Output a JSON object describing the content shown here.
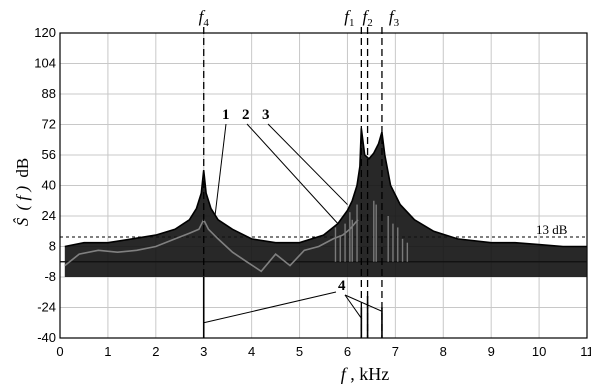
{
  "chart_data": {
    "type": "line",
    "xlabel": "f",
    "xlabel_unit": ", kHz",
    "ylabel_symbol": "Ŝ",
    "ylabel_arg": "( f )",
    "ylabel_unit": "dB",
    "xlim": [
      0,
      11
    ],
    "ylim": [
      -40,
      120
    ],
    "xticks": [
      0,
      1,
      2,
      3,
      4,
      5,
      6,
      7,
      8,
      9,
      10,
      11
    ],
    "yticks": [
      -40,
      -24,
      -8,
      8,
      24,
      40,
      56,
      72,
      88,
      104,
      120
    ],
    "grid": true,
    "threshold": {
      "value": 13,
      "label": "13 dB"
    },
    "zero_line": 0,
    "frequency_markers": [
      {
        "name": "f",
        "sub": "4",
        "x": 3.0
      },
      {
        "name": "f",
        "sub": "1",
        "x": 6.29
      },
      {
        "name": "f",
        "sub": "2",
        "x": 6.42
      },
      {
        "name": "f",
        "sub": "3",
        "x": 6.72
      }
    ],
    "series": [
      {
        "label_number": "1",
        "style": "gray-thin",
        "x": [
          0.1,
          0.4,
          0.8,
          1.2,
          1.6,
          2.0,
          2.4,
          2.7,
          2.9,
          3.0,
          3.1,
          3.3,
          3.6,
          3.9,
          4.2,
          4.5,
          4.8,
          5.1,
          5.4,
          5.7,
          5.9,
          6.05,
          6.15,
          6.22
        ],
        "y": [
          -2,
          4,
          6,
          5,
          6,
          8,
          12,
          15,
          17,
          22,
          17,
          12,
          5,
          0,
          -5,
          4,
          -2,
          6,
          8,
          12,
          14,
          17,
          20,
          22
        ]
      },
      {
        "label_number": "2",
        "style": "black-filled",
        "x": [
          0.1,
          0.5,
          1.0,
          1.5,
          2.0,
          2.4,
          2.7,
          2.85,
          2.95,
          3.0,
          3.05,
          3.15,
          3.3,
          3.6,
          4.0,
          4.5,
          5.0,
          5.5,
          5.8,
          6.0,
          6.1,
          6.2,
          6.26,
          6.29,
          6.36,
          6.45,
          6.55,
          6.65,
          6.72,
          6.78,
          6.9,
          7.1,
          7.4,
          7.8,
          8.3,
          9.0,
          9.5,
          10.0,
          10.5,
          11.0
        ],
        "y": [
          8,
          10,
          10,
          12,
          14,
          17,
          22,
          28,
          36,
          48,
          36,
          28,
          22,
          17,
          12,
          10,
          10,
          14,
          20,
          27,
          32,
          40,
          50,
          70,
          56,
          54,
          57,
          62,
          68,
          56,
          40,
          30,
          22,
          16,
          12,
          10,
          10,
          9,
          8,
          8
        ]
      },
      {
        "label_number": "3",
        "style": "gray-stems",
        "x": [
          5.75,
          5.85,
          5.95,
          6.05,
          6.1,
          6.2,
          6.55,
          6.6,
          6.85,
          6.95,
          7.05,
          7.15,
          7.25
        ],
        "y": [
          18,
          14,
          20,
          26,
          22,
          30,
          32,
          30,
          24,
          20,
          18,
          12,
          10
        ]
      },
      {
        "label_number": "4",
        "style": "black-spikes",
        "x": [
          3.0,
          6.29,
          6.42,
          6.72
        ],
        "y": [
          -8,
          -24,
          -18,
          -24
        ]
      }
    ],
    "annotations": [
      "1",
      "2",
      "3",
      "4"
    ]
  }
}
